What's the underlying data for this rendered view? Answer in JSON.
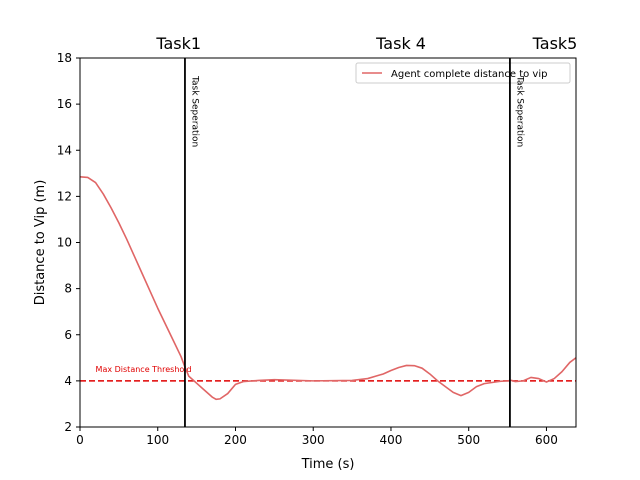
{
  "chart_data": {
    "type": "line",
    "xlabel": "Time (s)",
    "ylabel": "Distance to Vip (m)",
    "xlim": [
      0,
      638
    ],
    "ylim": [
      2,
      18
    ],
    "xticks": [
      0,
      100,
      200,
      300,
      400,
      500,
      600
    ],
    "yticks": [
      2,
      4,
      6,
      8,
      10,
      12,
      14,
      16,
      18
    ],
    "grid": false,
    "legend_position": "top-right",
    "series": [
      {
        "name": "Agent complete distance to vip",
        "color": "#e06666",
        "x": [
          0,
          10,
          20,
          30,
          40,
          50,
          60,
          70,
          80,
          90,
          100,
          110,
          120,
          130,
          135,
          140,
          150,
          160,
          170,
          175,
          180,
          190,
          200,
          210,
          230,
          250,
          300,
          350,
          370,
          380,
          390,
          400,
          410,
          420,
          430,
          440,
          450,
          460,
          470,
          480,
          490,
          500,
          510,
          520,
          530,
          540,
          550,
          555,
          560,
          570,
          580,
          590,
          600,
          610,
          620,
          630,
          638
        ],
        "y": [
          12.85,
          12.82,
          12.6,
          12.1,
          11.5,
          10.85,
          10.15,
          9.4,
          8.65,
          7.9,
          7.15,
          6.45,
          5.75,
          5.05,
          4.6,
          4.2,
          3.9,
          3.6,
          3.3,
          3.2,
          3.22,
          3.45,
          3.85,
          3.97,
          4.02,
          4.05,
          4.0,
          4.02,
          4.1,
          4.2,
          4.3,
          4.45,
          4.58,
          4.67,
          4.66,
          4.55,
          4.3,
          4.0,
          3.75,
          3.5,
          3.36,
          3.5,
          3.75,
          3.88,
          3.93,
          3.98,
          4.0,
          4.02,
          3.97,
          4.0,
          4.15,
          4.1,
          3.95,
          4.1,
          4.4,
          4.8,
          5.0
        ]
      }
    ],
    "threshold": {
      "y": 4,
      "label": "Max Distance Threshold",
      "color": "#e00000",
      "label_x": 20
    },
    "task_separators": [
      {
        "x": 135,
        "label": "Task Seperation"
      },
      {
        "x": 553,
        "label": "Task Seperation"
      }
    ],
    "task_labels": [
      {
        "x": 127,
        "label": "Task1"
      },
      {
        "x": 413,
        "label": "Task 4"
      },
      {
        "x": 611,
        "label": "Task5"
      }
    ]
  }
}
